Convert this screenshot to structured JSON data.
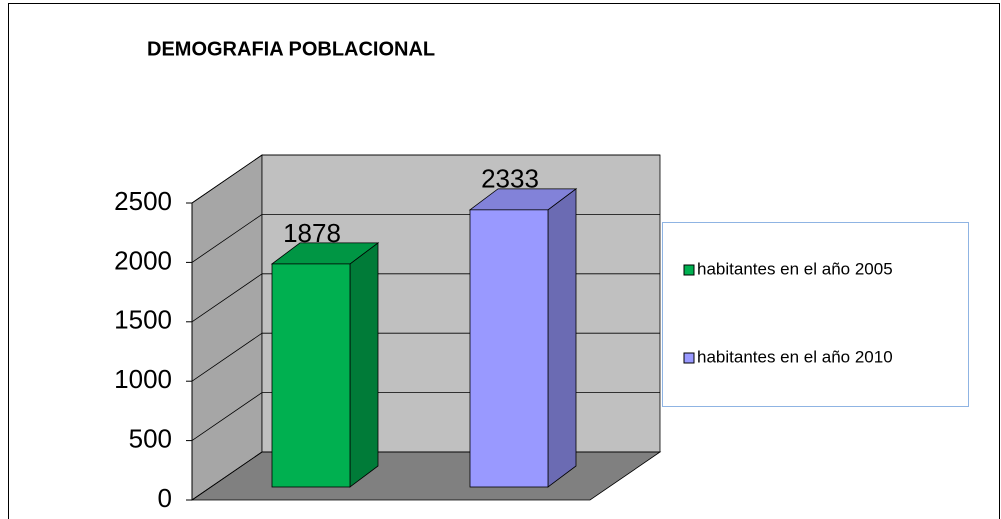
{
  "chart_data": {
    "type": "bar",
    "title": "DEMOGRAFIA  POBLACIONAL",
    "categories": [
      null
    ],
    "series": [
      {
        "name": "habitantes en el año 2005",
        "color": "#00b050",
        "values": [
          1878
        ]
      },
      {
        "name": "habitantes en el año 2010",
        "color": "#9999ff",
        "values": [
          2333
        ]
      }
    ],
    "ylim": [
      0,
      2500
    ],
    "yticks": [
      0,
      500,
      1000,
      1500,
      2000,
      2500
    ],
    "grid": true,
    "legend": "right"
  }
}
